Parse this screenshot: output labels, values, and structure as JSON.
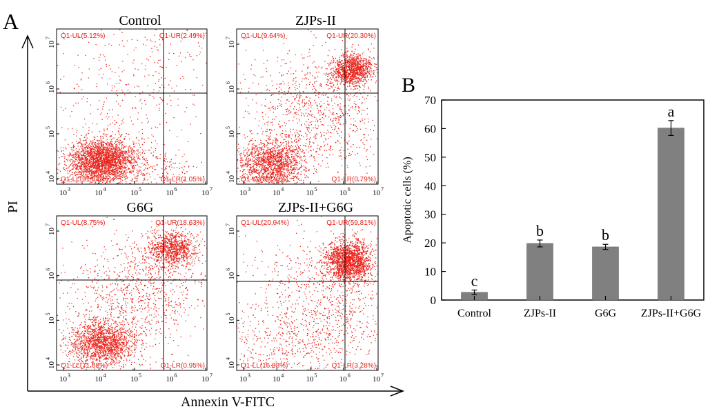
{
  "panel_a": {
    "letter": "A",
    "y_axis_label": "PI",
    "x_axis_label": "Annexin V-FITC",
    "x_ticks": [
      "10",
      "10",
      "10",
      "10",
      "10"
    ],
    "x_tick_exps": [
      "3",
      "4",
      "5",
      "6",
      "7"
    ],
    "y_ticks": [
      "10",
      "10",
      "10",
      "10"
    ],
    "y_tick_exps": [
      "4",
      "5",
      "6",
      "7"
    ],
    "dot_color": "#e8231b",
    "plots": [
      {
        "title": "Control",
        "ul": "Q1-UL(5.12%)",
        "ur": "Q1-UR(2.49%)",
        "ll": "Q1-LL(91.34%)",
        "lr": "Q1-LR(1.05%)"
      },
      {
        "title": "ZJPs-II",
        "ul": "Q1-UL(9.64%)",
        "ur": "Q1-UR(20.30%)",
        "ll": "Q1-LL(69.26%)",
        "lr": "Q1-LR(0.79%)"
      },
      {
        "title": "G6G",
        "ul": "Q1-UL(8.75%)",
        "ur": "Q1-UR(18.63%)",
        "ll": "Q1-LL(71.68%)",
        "lr": "Q1-LR(0.95%)"
      },
      {
        "title": "ZJPs-II+G6G",
        "ul": "Q1-UL(20.04%)",
        "ur": "Q1-UR(59.81%)",
        "ll": "Q1-LL(16.88%)",
        "lr": "Q1-LR(3.28%)"
      }
    ]
  },
  "chart_data": {
    "type": "bar",
    "panel_letter": "B",
    "categories": [
      "Control",
      "ZJPs-II",
      "G6G",
      "ZJPs-II+G6G"
    ],
    "values": [
      2.7,
      19.8,
      18.6,
      60.2
    ],
    "errors": [
      0.8,
      1.2,
      0.9,
      2.6
    ],
    "significance": [
      "c",
      "b",
      "b",
      "a"
    ],
    "ylabel": "Apoptotic cells (%)",
    "ylim": [
      0,
      70
    ],
    "yticks": [
      "0",
      "10",
      "20",
      "30",
      "40",
      "50",
      "60",
      "70"
    ],
    "bar_color": "#808080"
  }
}
